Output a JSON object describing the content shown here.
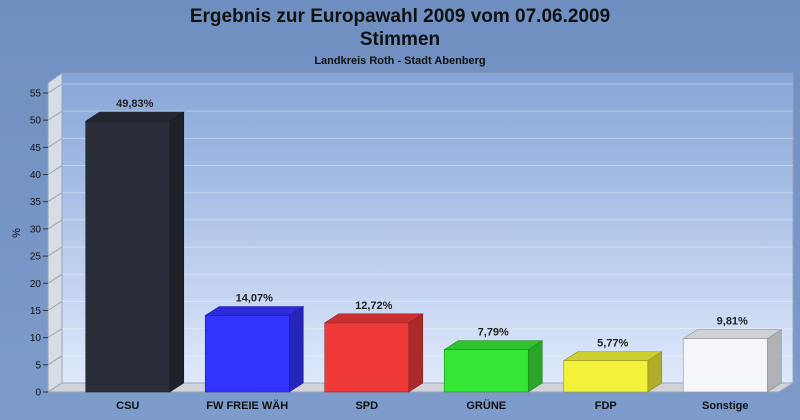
{
  "chart_data": {
    "type": "bar",
    "title": "Ergebnis zur Europawahl 2009 vom 07.06.2009",
    "subtitle": "Stimmen",
    "subtitle2": "Landkreis Roth - Stadt Abenberg",
    "ylabel": "%",
    "ylim": [
      0,
      55
    ],
    "yticks": [
      "0",
      "5",
      "10",
      "15",
      "20",
      "25",
      "30",
      "35",
      "40",
      "45",
      "50",
      "55"
    ],
    "grid": true,
    "categories": [
      "CSU",
      "FW FREIE WÄH",
      "SPD",
      "GRÜNE",
      "FDP",
      "Sonstige"
    ],
    "values": [
      49.83,
      14.07,
      12.72,
      7.79,
      5.77,
      9.81
    ],
    "value_labels": [
      "49,83%",
      "14,07%",
      "12,72%",
      "7,79%",
      "5,77%",
      "9,81%"
    ],
    "colors": [
      "#2a2e38",
      "#3333ff",
      "#f03a3a",
      "#36e636",
      "#f2f23a",
      "#f4f6fa"
    ]
  }
}
